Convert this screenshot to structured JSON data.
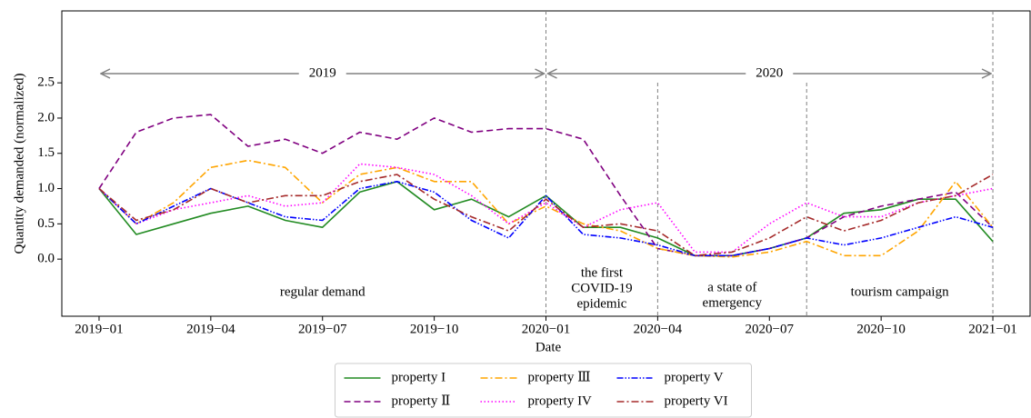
{
  "chart_data": {
    "type": "line",
    "xlabel": "Date",
    "ylabel": "Quantity demanded (normalized)",
    "x": [
      "2019-01",
      "2019-02",
      "2019-03",
      "2019-04",
      "2019-05",
      "2019-06",
      "2019-07",
      "2019-08",
      "2019-09",
      "2019-10",
      "2019-11",
      "2019-12",
      "2020-01",
      "2020-02",
      "2020-03",
      "2020-04",
      "2020-05",
      "2020-06",
      "2020-07",
      "2020-08",
      "2020-09",
      "2020-10",
      "2020-11",
      "2020-12",
      "2021-01"
    ],
    "xlim": [
      "2018-12",
      "2021-02"
    ],
    "xticks": [
      {
        "value": "2019-01",
        "label": "2019−01"
      },
      {
        "value": "2019-04",
        "label": "2019−04"
      },
      {
        "value": "2019-07",
        "label": "2019−07"
      },
      {
        "value": "2019-10",
        "label": "2019−10"
      },
      {
        "value": "2020-01",
        "label": "2020−01"
      },
      {
        "value": "2020-04",
        "label": "2020−04"
      },
      {
        "value": "2020-07",
        "label": "2020−07"
      },
      {
        "value": "2020-10",
        "label": "2020−10"
      },
      {
        "value": "2021-01",
        "label": "2021−01"
      }
    ],
    "ylim": [
      -0.81,
      3.52
    ],
    "yticks": [
      {
        "value": 0,
        "label": "0.0"
      },
      0.5,
      {
        "value": 1,
        "label": "1.0"
      },
      1.5,
      {
        "value": 2,
        "label": "2.0"
      },
      2.5
    ],
    "series": [
      {
        "name": "property I",
        "color": "#228b22",
        "values": [
          1.0,
          0.35,
          0.5,
          0.65,
          0.75,
          0.55,
          0.45,
          0.95,
          1.1,
          0.7,
          0.85,
          0.6,
          0.9,
          0.45,
          0.45,
          0.3,
          0.05,
          0.05,
          0.15,
          0.3,
          0.65,
          0.7,
          0.85,
          0.85,
          0.25
        ]
      },
      {
        "name": "property Ⅱ",
        "color": "#800080",
        "values": [
          1.0,
          1.8,
          2.0,
          2.05,
          1.6,
          1.7,
          1.5,
          1.8,
          1.7,
          2.0,
          1.8,
          1.85,
          1.85,
          1.7,
          0.9,
          0.15,
          0.05,
          0.05,
          0.15,
          0.3,
          0.6,
          0.75,
          0.85,
          0.95,
          0.45
        ]
      },
      {
        "name": "property Ⅲ",
        "color": "#ffa500",
        "values": [
          1.0,
          0.5,
          0.8,
          1.3,
          1.4,
          1.3,
          0.8,
          1.2,
          1.3,
          1.1,
          1.1,
          0.5,
          0.75,
          0.5,
          0.4,
          0.15,
          0.05,
          0.03,
          0.1,
          0.25,
          0.05,
          0.05,
          0.4,
          1.1,
          0.45
        ]
      },
      {
        "name": "property IV",
        "color": "#ff00ff",
        "values": [
          1.0,
          0.5,
          0.7,
          0.8,
          0.9,
          0.75,
          0.8,
          1.35,
          1.3,
          1.2,
          0.9,
          0.5,
          0.8,
          0.45,
          0.7,
          0.8,
          0.1,
          0.1,
          0.5,
          0.8,
          0.6,
          0.6,
          0.8,
          0.9,
          1.0
        ]
      },
      {
        "name": "property V",
        "color": "#0000ff",
        "values": [
          1.0,
          0.5,
          0.75,
          1.0,
          0.8,
          0.6,
          0.55,
          1.0,
          1.1,
          0.95,
          0.55,
          0.3,
          0.9,
          0.35,
          0.3,
          0.2,
          0.05,
          0.05,
          0.15,
          0.3,
          0.2,
          0.3,
          0.45,
          0.6,
          0.45
        ]
      },
      {
        "name": "property VI",
        "color": "#a52a2a",
        "values": [
          1.0,
          0.55,
          0.7,
          1.0,
          0.8,
          0.9,
          0.9,
          1.1,
          1.2,
          0.85,
          0.6,
          0.4,
          0.85,
          0.45,
          0.5,
          0.4,
          0.05,
          0.1,
          0.3,
          0.6,
          0.4,
          0.55,
          0.8,
          0.9,
          1.2
        ]
      }
    ],
    "arrows": [
      {
        "from": "2019-01",
        "to": "2020-01",
        "label": "2019"
      },
      {
        "from": "2020-01",
        "to": "2021-01",
        "label": "2020"
      }
    ],
    "regions": [
      {
        "from": "2019-01",
        "to": "2020-01",
        "lines": [
          "regular demand"
        ]
      },
      {
        "from": "2020-01",
        "to": "2020-04",
        "lines": [
          "the first",
          "COVID-19",
          "epidemic"
        ]
      },
      {
        "from": "2020-04",
        "to": "2020-08",
        "lines": [
          "a state of",
          "emergency"
        ]
      },
      {
        "from": "2020-08",
        "to": "2021-01",
        "lines": [
          "tourism campaign"
        ]
      }
    ],
    "legend": "lower center"
  }
}
